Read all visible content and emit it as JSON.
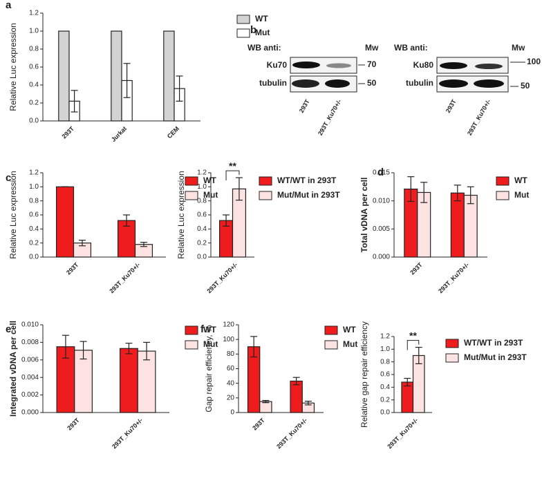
{
  "chart_data": [
    {
      "type": "bar",
      "label": "a",
      "ylabel": "Relative Luc expression",
      "categories": [
        "293T",
        "Jurkat",
        "CEM"
      ],
      "series": [
        {
          "name": "WT",
          "color": "#d3d3d3",
          "values": [
            1,
            1,
            1
          ]
        },
        {
          "name": "Mut",
          "color": "#ffffff",
          "values": [
            0.22,
            0.45,
            0.36
          ],
          "errors": [
            0.12,
            0.19,
            0.14
          ]
        }
      ],
      "ylim": [
        0,
        1.2
      ],
      "yticks": [
        {
          "value": 0,
          "label": "0.0"
        },
        0.2,
        0.4,
        0.6,
        0.8,
        {
          "value": 1,
          "label": "1.0"
        },
        1.2
      ]
    },
    {
      "type": "bar",
      "label": "c",
      "ylabel": "Relative Luc expression",
      "categories": [
        "293T",
        "293T_Ku70+/-"
      ],
      "series": [
        {
          "name": "WT",
          "color": "#ee1c1c",
          "values": [
            1,
            0.52
          ],
          "errors": [
            0,
            0.08
          ]
        },
        {
          "name": "Mut",
          "color": "#fde2e2",
          "values": [
            0.2,
            0.18
          ],
          "errors": [
            0.04,
            0.03
          ]
        }
      ],
      "ylim": [
        0,
        1.2
      ],
      "yticks": [
        {
          "value": 0,
          "label": "0.0"
        },
        0.2,
        0.4,
        0.6,
        0.8,
        {
          "value": 1,
          "label": "1.0"
        },
        1.2
      ]
    },
    {
      "type": "bar",
      "ylabel": "Relative Luc expression",
      "annotation": "**",
      "categories": [
        "293T_Ku70+/-"
      ],
      "series": [
        {
          "name": "WT/WT in 293T",
          "color": "#ee1c1c",
          "values": [
            0.52
          ],
          "errors": [
            0.08
          ]
        },
        {
          "name": "Mut/Mut in 293T",
          "color": "#fde2e2",
          "values": [
            0.97
          ],
          "errors": [
            0.16
          ]
        }
      ],
      "ylim": [
        0,
        1.2
      ],
      "yticks": [
        {
          "value": 0,
          "label": "0.0"
        },
        0.2,
        0.4,
        0.6,
        0.8,
        {
          "value": 1,
          "label": "1.0"
        },
        1.2
      ]
    },
    {
      "type": "bar",
      "label": "d",
      "ylabel": "Total vDNA per cell",
      "categories": [
        "293T",
        "293T_Ku70+/-"
      ],
      "series": [
        {
          "name": "WT",
          "color": "#ee1c1c",
          "values": [
            0.0121,
            0.0114
          ],
          "errors": [
            0.0022,
            0.0014
          ]
        },
        {
          "name": "Mut",
          "color": "#fde2e2",
          "values": [
            0.0115,
            0.011
          ],
          "errors": [
            0.0018,
            0.0015
          ]
        }
      ],
      "ylim": [
        0,
        0.015
      ],
      "yticks": [
        {
          "value": 0,
          "label": "0.000"
        },
        {
          "value": 0.005,
          "label": "0.005"
        },
        {
          "value": 0.01,
          "label": "0.010"
        },
        {
          "value": 0.015,
          "label": "0.015"
        }
      ]
    },
    {
      "type": "bar",
      "label": "e",
      "ylabel": "Integrated vDNA per cell",
      "categories": [
        "293T",
        "293T_Ku70+/-"
      ],
      "series": [
        {
          "name": "WT",
          "color": "#ee1c1c",
          "values": [
            0.0075,
            0.0073
          ],
          "errors": [
            0.0013,
            0.0006
          ]
        },
        {
          "name": "Mut",
          "color": "#fde2e2",
          "values": [
            0.0071,
            0.007
          ],
          "errors": [
            0.001,
            0.001
          ]
        }
      ],
      "ylim": [
        0,
        0.01
      ],
      "yticks": [
        {
          "value": 0,
          "label": "0.000"
        },
        {
          "value": 0.002,
          "label": "0.002"
        },
        {
          "value": 0.004,
          "label": "0.004"
        },
        {
          "value": 0.006,
          "label": "0.006"
        },
        {
          "value": 0.008,
          "label": "0.008"
        },
        {
          "value": 0.01,
          "label": "0.010"
        }
      ]
    },
    {
      "type": "bar",
      "label": "f",
      "ylabel": "Gap repair efficiency, %",
      "categories": [
        "293T",
        "293T_Ku70+/-"
      ],
      "series": [
        {
          "name": "WT",
          "color": "#ee1c1c",
          "values": [
            90,
            43
          ],
          "errors": [
            14,
            5
          ]
        },
        {
          "name": "Mut",
          "color": "#fde2e2",
          "values": [
            15,
            13
          ],
          "errors": [
            1.5,
            2.5
          ]
        }
      ],
      "ylim": [
        0,
        120
      ],
      "yticks": [
        0,
        20,
        40,
        60,
        80,
        100,
        120
      ]
    },
    {
      "type": "bar",
      "ylabel": "Relative gap repair efficiency",
      "annotation": "**",
      "categories": [
        "293T_Ku70+/-"
      ],
      "series": [
        {
          "name": "WT/WT in 293T",
          "color": "#ee1c1c",
          "values": [
            0.48
          ],
          "errors": [
            0.06
          ]
        },
        {
          "name": "Mut/Mut in 293T",
          "color": "#fde2e2",
          "values": [
            0.9
          ],
          "errors": [
            0.13
          ]
        }
      ],
      "ylim": [
        0,
        1.2
      ],
      "yticks": [
        {
          "value": 0,
          "label": "0.0"
        },
        0.2,
        0.4,
        0.6,
        0.8,
        {
          "value": 1,
          "label": "1.0"
        },
        1.2
      ]
    }
  ],
  "blot": {
    "label": "b",
    "panels": [
      {
        "header": "WB anti:",
        "mw_header": "Mw",
        "rows": [
          {
            "antibody": "Ku70",
            "mw": "70"
          },
          {
            "antibody": "tubulin",
            "mw": "50"
          }
        ],
        "lanes": [
          "293T",
          "293T_Ku70+/-"
        ]
      },
      {
        "header": "WB anti:",
        "mw_header": "Mw",
        "rows": [
          {
            "antibody": "Ku80",
            "mw": "100"
          },
          {
            "antibody": "tubulin",
            "mw": "50"
          }
        ],
        "lanes": [
          "293T",
          "293T_Ku70+/-"
        ]
      }
    ]
  }
}
